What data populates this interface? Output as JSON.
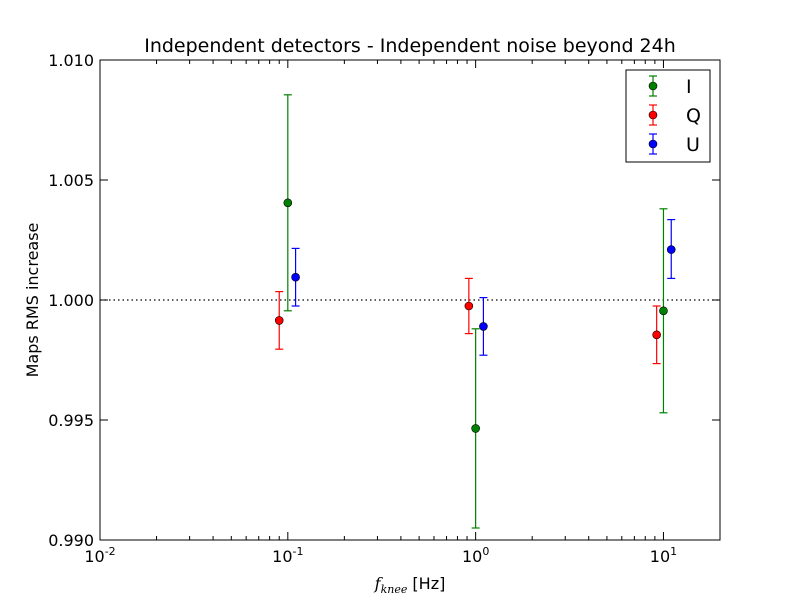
{
  "chart_data": {
    "type": "scatter",
    "title": "Independent detectors - Independent noise beyond 24h",
    "xlabel": {
      "main": "f",
      "sub": "knee",
      "unit": " [Hz]"
    },
    "ylabel": "Maps RMS increase",
    "xscale": "log",
    "xlim": [
      0.01,
      20
    ],
    "ylim": [
      0.99,
      1.01
    ],
    "xticks": [
      {
        "value": 0.01,
        "base": "10",
        "exp": "-2"
      },
      {
        "value": 0.1,
        "base": "10",
        "exp": "-1"
      },
      {
        "value": 1,
        "base": "10",
        "exp": "0"
      },
      {
        "value": 10,
        "base": "10",
        "exp": "1"
      }
    ],
    "yticks": [
      {
        "value": 0.99,
        "label": "0.990"
      },
      {
        "value": 0.995,
        "label": "0.995"
      },
      {
        "value": 1.0,
        "label": "1.000"
      },
      {
        "value": 1.005,
        "label": "1.005"
      },
      {
        "value": 1.01,
        "label": "1.010"
      }
    ],
    "reference_line": {
      "y": 1.0,
      "style": "dotted"
    },
    "grid": false,
    "legend_position": "top-right",
    "series": [
      {
        "name": "I",
        "color": "#008000",
        "points": [
          {
            "x": 0.1,
            "y": 1.00405,
            "yerr_low": 0.99955,
            "yerr_high": 1.00855
          },
          {
            "x": 1.0,
            "y": 0.99465,
            "yerr_low": 0.9905,
            "yerr_high": 0.9988
          },
          {
            "x": 10.0,
            "y": 0.99955,
            "yerr_low": 0.9953,
            "yerr_high": 1.0038
          }
        ]
      },
      {
        "name": "Q",
        "color": "#ff0000",
        "points": [
          {
            "x": 0.09,
            "y": 0.99915,
            "yerr_low": 0.99795,
            "yerr_high": 1.00035
          },
          {
            "x": 0.92,
            "y": 0.99975,
            "yerr_low": 0.9986,
            "yerr_high": 1.0009
          },
          {
            "x": 9.2,
            "y": 0.99855,
            "yerr_low": 0.99735,
            "yerr_high": 0.99975
          }
        ]
      },
      {
        "name": "U",
        "color": "#0000ff",
        "points": [
          {
            "x": 0.11,
            "y": 1.00095,
            "yerr_low": 0.99975,
            "yerr_high": 1.00215
          },
          {
            "x": 1.1,
            "y": 0.9989,
            "yerr_low": 0.9977,
            "yerr_high": 1.0001
          },
          {
            "x": 11.0,
            "y": 1.0021,
            "yerr_low": 1.0009,
            "yerr_high": 1.00335
          }
        ]
      }
    ]
  }
}
